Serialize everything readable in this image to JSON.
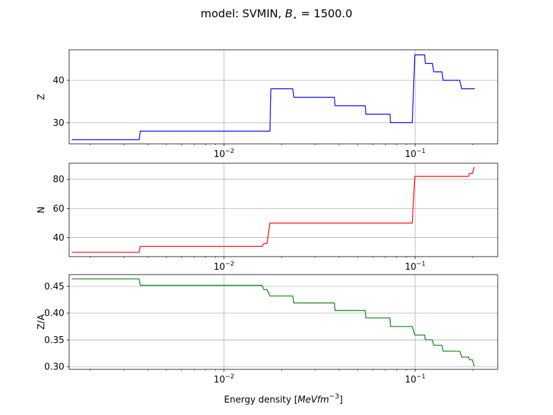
{
  "figure": {
    "title_prefix": "model: SVMIN, ",
    "title_var": "B",
    "title_sub": "⋆",
    "title_suffix": " = 1500.0"
  },
  "chart_data": [
    {
      "type": "line",
      "xscale": "log",
      "xlim": [
        0.00155,
        0.27
      ],
      "ylim": [
        25.0,
        47.2
      ],
      "ylabel": "Z",
      "yticks": [
        30,
        40
      ],
      "xticks": [
        0.01,
        0.1
      ],
      "xtick_labels": [
        {
          "base": "10",
          "exp": "−2"
        },
        {
          "base": "10",
          "exp": "−1"
        }
      ],
      "grid": true,
      "color": "#0000ff",
      "series": [
        {
          "x": [
            0.0016,
            0.0036,
            0.00365,
            0.0174,
            0.0176,
            0.0229,
            0.0232,
            0.0378,
            0.0381,
            0.0548,
            0.0552,
            0.0738,
            0.0742,
            0.0965,
            0.0995,
            0.112,
            0.113,
            0.123,
            0.125,
            0.138,
            0.14,
            0.152,
            0.155,
            0.171,
            0.175,
            0.205
          ],
          "y": [
            26,
            26,
            28,
            28,
            38,
            38,
            36,
            36,
            34,
            34,
            32,
            32,
            30,
            30,
            46,
            46,
            44,
            44,
            42,
            42,
            40,
            40,
            40,
            40,
            38,
            38
          ]
        }
      ]
    },
    {
      "type": "line",
      "xscale": "log",
      "xlim": [
        0.00155,
        0.27
      ],
      "ylim": [
        27.0,
        91.0
      ],
      "ylabel": "N",
      "yticks": [
        40,
        60,
        80
      ],
      "xticks": [
        0.01,
        0.1
      ],
      "xtick_labels": [
        {
          "base": "10",
          "exp": "−2"
        },
        {
          "base": "10",
          "exp": "−1"
        }
      ],
      "grid": true,
      "color": "#ff0000",
      "series": [
        {
          "x": [
            0.0016,
            0.0036,
            0.00365,
            0.0158,
            0.0162,
            0.0168,
            0.0174,
            0.0965,
            0.0995,
            0.19,
            0.192,
            0.199,
            0.203,
            0.205
          ],
          "y": [
            30,
            30,
            34,
            34,
            36,
            36,
            50,
            50,
            82,
            82,
            84,
            84,
            88,
            88
          ]
        }
      ]
    },
    {
      "type": "line",
      "xscale": "log",
      "xlim": [
        0.00155,
        0.27
      ],
      "ylim": [
        0.295,
        0.472
      ],
      "ylabel": "Z/A",
      "yticks": [
        0.3,
        0.35,
        0.4,
        0.45
      ],
      "ytick_labels": [
        "0.30",
        "0.35",
        "0.40",
        "0.45"
      ],
      "xticks": [
        0.01,
        0.1
      ],
      "xtick_labels": [
        {
          "base": "10",
          "exp": "−2"
        },
        {
          "base": "10",
          "exp": "−1"
        }
      ],
      "grid": true,
      "color": "#008000",
      "xlabel_prefix": "Energy density [",
      "xlabel_var": "MeVfm",
      "xlabel_sup": "−3",
      "xlabel_suffix": "]",
      "series": [
        {
          "x": [
            0.0016,
            0.0036,
            0.00365,
            0.0158,
            0.0162,
            0.0168,
            0.0174,
            0.0229,
            0.0232,
            0.0378,
            0.0381,
            0.0548,
            0.0552,
            0.0738,
            0.0742,
            0.0965,
            0.0995,
            0.112,
            0.113,
            0.123,
            0.125,
            0.138,
            0.14,
            0.152,
            0.155,
            0.171,
            0.175,
            0.19,
            0.192,
            0.199,
            0.203,
            0.205
          ],
          "y": [
            0.464,
            0.464,
            0.452,
            0.452,
            0.444,
            0.444,
            0.432,
            0.432,
            0.419,
            0.419,
            0.405,
            0.405,
            0.391,
            0.391,
            0.375,
            0.375,
            0.359,
            0.359,
            0.35,
            0.35,
            0.34,
            0.34,
            0.329,
            0.329,
            0.329,
            0.329,
            0.318,
            0.318,
            0.313,
            0.313,
            0.302,
            0.302
          ]
        }
      ]
    }
  ]
}
